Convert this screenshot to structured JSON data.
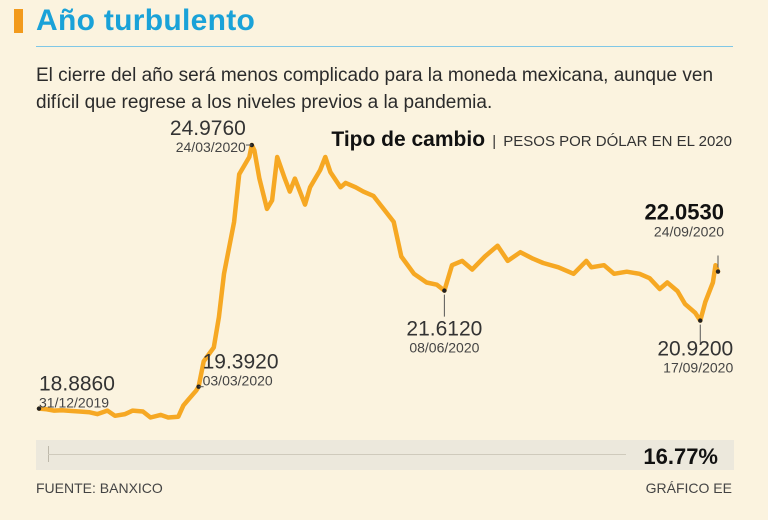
{
  "header": {
    "title": "Año turbulento",
    "subtitle": "El cierre del año será menos complicado para la moneda mexicana, aunque ven difícil que regrese a los niveles previos a la pandemia."
  },
  "chart_head": {
    "title": "Tipo de cambio",
    "separator": "|",
    "unit": "PESOS POR DÓLAR EN EL 2020"
  },
  "chart_data": {
    "type": "line",
    "title": "Tipo de cambio",
    "subtitle": "PESOS POR DÓLAR EN EL 2020",
    "xlabel": "",
    "ylabel": "",
    "ylim": [
      18.6,
      25.3
    ],
    "grid": false,
    "legend": "none",
    "series": [
      {
        "color": "#f6a823",
        "points": [
          [
            "2019-12-31",
            18.886
          ],
          [
            "2020-01-03",
            18.87
          ],
          [
            "2020-01-06",
            18.84
          ],
          [
            "2020-01-09",
            18.85
          ],
          [
            "2020-01-13",
            18.83
          ],
          [
            "2020-01-16",
            18.82
          ],
          [
            "2020-01-20",
            18.8
          ],
          [
            "2020-01-23",
            18.76
          ],
          [
            "2020-01-27",
            18.84
          ],
          [
            "2020-01-30",
            18.72
          ],
          [
            "2020-02-03",
            18.76
          ],
          [
            "2020-02-06",
            18.84
          ],
          [
            "2020-02-10",
            18.82
          ],
          [
            "2020-02-13",
            18.68
          ],
          [
            "2020-02-17",
            18.74
          ],
          [
            "2020-02-20",
            18.68
          ],
          [
            "2020-02-24",
            18.7
          ],
          [
            "2020-02-26",
            18.96
          ],
          [
            "2020-02-28",
            19.1
          ],
          [
            "2020-03-02",
            19.3
          ],
          [
            "2020-03-03",
            19.392
          ],
          [
            "2020-03-05",
            19.98
          ],
          [
            "2020-03-09",
            20.3
          ],
          [
            "2020-03-11",
            21.0
          ],
          [
            "2020-03-13",
            22.0
          ],
          [
            "2020-03-17",
            23.2
          ],
          [
            "2020-03-19",
            24.3
          ],
          [
            "2020-03-23",
            24.7
          ],
          [
            "2020-03-24",
            24.976
          ],
          [
            "2020-03-25",
            24.85
          ],
          [
            "2020-03-27",
            24.2
          ],
          [
            "2020-03-30",
            23.5
          ],
          [
            "2020-04-01",
            23.7
          ],
          [
            "2020-04-03",
            24.7
          ],
          [
            "2020-04-06",
            24.2
          ],
          [
            "2020-04-08",
            23.9
          ],
          [
            "2020-04-10",
            24.2
          ],
          [
            "2020-04-14",
            23.6
          ],
          [
            "2020-04-16",
            24.0
          ],
          [
            "2020-04-20",
            24.4
          ],
          [
            "2020-04-22",
            24.7
          ],
          [
            "2020-04-24",
            24.35
          ],
          [
            "2020-04-28",
            24.0
          ],
          [
            "2020-04-30",
            24.1
          ],
          [
            "2020-05-04",
            24.0
          ],
          [
            "2020-05-07",
            23.9
          ],
          [
            "2020-05-11",
            23.8
          ],
          [
            "2020-05-15",
            23.5
          ],
          [
            "2020-05-19",
            23.2
          ],
          [
            "2020-05-22",
            22.4
          ],
          [
            "2020-05-27",
            22.0
          ],
          [
            "2020-06-01",
            21.8
          ],
          [
            "2020-06-05",
            21.75
          ],
          [
            "2020-06-08",
            21.612
          ],
          [
            "2020-06-11",
            22.2
          ],
          [
            "2020-06-15",
            22.3
          ],
          [
            "2020-06-19",
            22.1
          ],
          [
            "2020-06-24",
            22.4
          ],
          [
            "2020-06-29",
            22.65
          ],
          [
            "2020-07-03",
            22.3
          ],
          [
            "2020-07-08",
            22.5
          ],
          [
            "2020-07-13",
            22.35
          ],
          [
            "2020-07-17",
            22.25
          ],
          [
            "2020-07-23",
            22.15
          ],
          [
            "2020-07-29",
            22.0
          ],
          [
            "2020-08-03",
            22.3
          ],
          [
            "2020-08-05",
            22.15
          ],
          [
            "2020-08-10",
            22.2
          ],
          [
            "2020-08-14",
            22.0
          ],
          [
            "2020-08-19",
            22.05
          ],
          [
            "2020-08-24",
            22.0
          ],
          [
            "2020-08-28",
            21.9
          ],
          [
            "2020-09-01",
            21.65
          ],
          [
            "2020-09-04",
            21.8
          ],
          [
            "2020-09-08",
            21.6
          ],
          [
            "2020-09-11",
            21.3
          ],
          [
            "2020-09-15",
            21.1
          ],
          [
            "2020-09-17",
            20.92
          ],
          [
            "2020-09-19",
            21.35
          ],
          [
            "2020-09-22",
            21.8
          ],
          [
            "2020-09-23",
            22.2
          ],
          [
            "2020-09-24",
            22.053
          ]
        ]
      }
    ],
    "annotations": [
      {
        "value": "18.8860",
        "date": "31/12/2019",
        "at": "2019-12-31",
        "emphasis": false
      },
      {
        "value": "19.3920",
        "date": "03/03/2020",
        "at": "2020-03-03",
        "emphasis": false
      },
      {
        "value": "24.9760",
        "date": "24/03/2020",
        "at": "2020-03-24",
        "emphasis": false
      },
      {
        "value": "21.6120",
        "date": "08/06/2020",
        "at": "2020-06-08",
        "emphasis": false
      },
      {
        "value": "20.9200",
        "date": "17/09/2020",
        "at": "2020-09-17",
        "emphasis": false
      },
      {
        "value": "22.0530",
        "date": "24/09/2020",
        "at": "2020-09-24",
        "emphasis": true
      }
    ]
  },
  "change": {
    "value": "16.77%"
  },
  "footer": {
    "source": "FUENTE: BANXICO",
    "credit": "GRÁFICO EE"
  }
}
